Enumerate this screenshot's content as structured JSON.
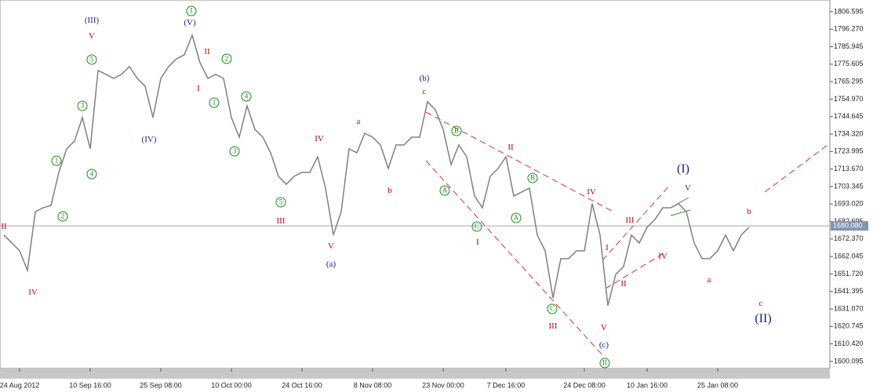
{
  "chart_data": {
    "type": "line",
    "color": "#808080",
    "categories": [
      null,
      null,
      "24 Aug 2012",
      null,
      null,
      null,
      null,
      null,
      null,
      null,
      null,
      "10 Sep 16:00",
      null,
      null,
      null,
      null,
      null,
      null,
      null,
      null,
      "25 Sep 08:00",
      null,
      null,
      null,
      null,
      null,
      null,
      null,
      null,
      "10 Oct 00:00",
      null,
      null,
      null,
      null,
      null,
      null,
      null,
      null,
      "24 Oct 16:00",
      null,
      null,
      null,
      null,
      null,
      null,
      null,
      null,
      "8 Nov 08:00",
      null,
      null,
      null,
      null,
      null,
      null,
      null,
      null,
      "23 Nov 00:00",
      null,
      null,
      null,
      null,
      null,
      null,
      null,
      "7 Dec 16:00",
      null,
      null,
      null,
      null,
      null,
      null,
      null,
      null,
      null,
      "24 Dec 08:00",
      null,
      null,
      null,
      null,
      null,
      null,
      null,
      "10 Jan 16:00",
      null,
      null,
      null,
      null,
      null,
      null,
      null,
      null,
      "25 Jan 08:00",
      null,
      null,
      null,
      null
    ],
    "values": [
      1674.7,
      1670.0,
      1665.4,
      1653.8,
      1688.5,
      1690.8,
      1692.2,
      1711.7,
      1725.6,
      1730.2,
      1744.1,
      1725.6,
      1771.9,
      1769.6,
      1767.2,
      1769.6,
      1774.2,
      1767.2,
      1762.6,
      1744.1,
      1767.2,
      1774.2,
      1778.8,
      1781.1,
      1792.7,
      1776.5,
      1767.2,
      1769.6,
      1767.2,
      1744.1,
      1732.5,
      1751.0,
      1737.1,
      1732.5,
      1723.3,
      1709.4,
      1704.7,
      1709.4,
      1711.7,
      1711.7,
      1720.9,
      1702.4,
      1674.7,
      1688.5,
      1725.6,
      1723.3,
      1734.8,
      1732.5,
      1727.9,
      1714.0,
      1727.9,
      1727.9,
      1732.5,
      1732.5,
      1753.4,
      1748.7,
      1737.1,
      1716.3,
      1727.9,
      1720.9,
      1697.8,
      1690.8,
      1709.4,
      1714.0,
      1720.9,
      1697.8,
      1700.1,
      1702.4,
      1674.7,
      1665.4,
      1637.6,
      1660.8,
      1660.8,
      1665.4,
      1665.4,
      1693.2,
      1674.7,
      1633.0,
      1651.5,
      1656.1,
      1674.7,
      1670.0,
      1679.3,
      1683.9,
      1690.8,
      1690.8,
      1693.2,
      1688.5,
      1670.0,
      1660.8,
      1660.8,
      1665.4,
      1674.7,
      1665.4,
      1674.7,
      1679.3
    ],
    "ylim": [
      1595.9,
      1813.5
    ],
    "yticks": [
      1806.595,
      {
        "value": 1796.27,
        "label": "1796.270"
      },
      1785.945,
      1775.605,
      1765.295,
      {
        "value": 1754.97,
        "label": "1754.970"
      },
      1744.645,
      {
        "value": 1734.32,
        "label": "1734.320"
      },
      1723.995,
      {
        "value": 1713.67,
        "label": "1713.670"
      },
      1703.345,
      {
        "value": 1693.02,
        "label": "1693.020"
      },
      1682.695,
      {
        "value": 1672.37,
        "label": "1672.370"
      },
      1662.045,
      {
        "value": 1651.72,
        "label": "1651.720"
      },
      1641.395,
      {
        "value": 1631.07,
        "label": "1631.070"
      },
      1620.745,
      {
        "value": 1610.42,
        "label": "1610.420"
      },
      1600.095
    ],
    "last_price": {
      "value": 1680.08,
      "label": "1680.080"
    },
    "annotations": [
      {
        "text": "II",
        "color": "#cc0000"
      },
      {
        "text": "IV",
        "color": "#cc0000"
      },
      {
        "text": "(III)",
        "color": "#1a1a9a"
      },
      {
        "text": "V",
        "color": "#cc0000"
      },
      {
        "text": "1",
        "color": "#1a8a1a",
        "shape": "circle"
      },
      {
        "text": "2",
        "color": "#1a8a1a",
        "shape": "circle"
      },
      {
        "text": "3",
        "color": "#1a8a1a",
        "shape": "circle"
      },
      {
        "text": "4",
        "color": "#1a8a1a",
        "shape": "circle"
      },
      {
        "text": "5",
        "color": "#1a8a1a",
        "shape": "circle"
      },
      {
        "text": "(IV)",
        "color": "#1a1a9a"
      },
      {
        "text": "(V)",
        "color": "#1a1a9a"
      },
      {
        "text": "I",
        "color": "#1a8a1a",
        "shape": "circle"
      },
      {
        "text": "II",
        "color": "#cc0000"
      },
      {
        "text": "I",
        "color": "#cc0000"
      },
      {
        "text": "2",
        "color": "#1a8a1a",
        "shape": "circle"
      },
      {
        "text": "1",
        "color": "#1a8a1a",
        "shape": "circle"
      },
      {
        "text": "4",
        "color": "#1a8a1a",
        "shape": "circle"
      },
      {
        "text": "3",
        "color": "#1a8a1a",
        "shape": "circle"
      },
      {
        "text": "5",
        "color": "#1a8a1a",
        "shape": "circle"
      },
      {
        "text": "III",
        "color": "#cc0000"
      },
      {
        "text": "IV",
        "color": "#cc0000"
      },
      {
        "text": "V",
        "color": "#cc0000"
      },
      {
        "text": "(a)",
        "color": "#1a1a9a"
      },
      {
        "text": "a",
        "color": "#cc0000"
      },
      {
        "text": "b",
        "color": "#cc0000"
      },
      {
        "text": "(b)",
        "color": "#1a1a9a"
      },
      {
        "text": "c",
        "color": "#cc0000"
      },
      {
        "text": "B",
        "color": "#1a8a1a",
        "shape": "circle"
      },
      {
        "text": "A",
        "color": "#1a8a1a",
        "shape": "circle"
      },
      {
        "text": "II",
        "color": "#cc0000"
      },
      {
        "text": "B",
        "color": "#1a8a1a",
        "shape": "circle"
      },
      {
        "text": "A",
        "color": "#1a8a1a",
        "shape": "circle"
      },
      {
        "text": "C",
        "color": "#1a8a1a",
        "shape": "circle"
      },
      {
        "text": "I",
        "color": "#cc0000"
      },
      {
        "text": "IV",
        "color": "#cc0000"
      },
      {
        "text": "C",
        "color": "#1a8a1a",
        "shape": "circle"
      },
      {
        "text": "III",
        "color": "#cc0000"
      },
      {
        "text": "I",
        "color": "#cc0000"
      },
      {
        "text": "II",
        "color": "#cc0000"
      },
      {
        "text": "III",
        "color": "#cc0000"
      },
      {
        "text": "IV",
        "color": "#cc0000"
      },
      {
        "text": "V",
        "color": "#cc0000"
      },
      {
        "text": "(I)",
        "color": "#1a1a9a",
        "size": "large"
      },
      {
        "text": "V",
        "color": "#cc0000"
      },
      {
        "text": "(c)",
        "color": "#1a1a9a"
      },
      {
        "text": "II",
        "color": "#1a8a1a",
        "shape": "circle"
      },
      {
        "text": "a",
        "color": "#cc0000"
      },
      {
        "text": "b",
        "color": "#cc0000"
      },
      {
        "text": "c",
        "color": "#cc0000"
      },
      {
        "text": "(II)",
        "color": "#1a1a9a",
        "size": "large"
      }
    ]
  }
}
